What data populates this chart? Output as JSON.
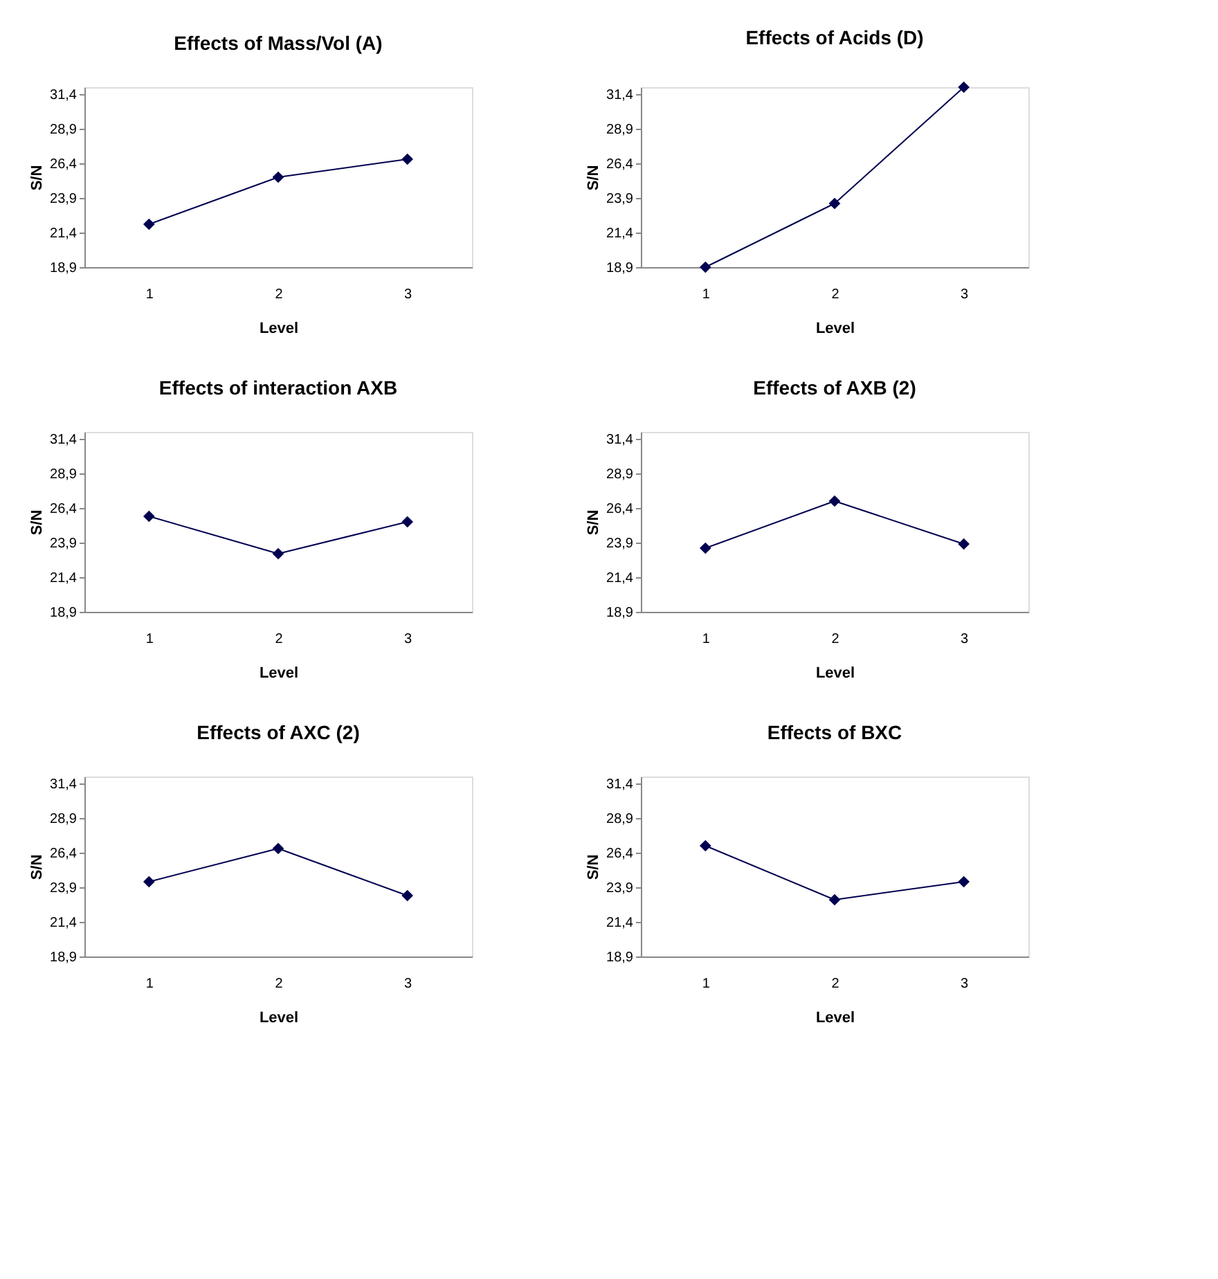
{
  "chart_data": [
    {
      "type": "line",
      "title": "Effects of Mass/Vol (A)",
      "xlabel": "Level",
      "ylabel": "S/N",
      "categories": [
        "1",
        "2",
        "3"
      ],
      "values": [
        22.0,
        25.4,
        26.7
      ],
      "color": "#000050",
      "marker": "diamond",
      "line_style": "solid",
      "grid": false,
      "ylim": [
        18.9,
        31.9
      ],
      "yticks": [
        {
          "value": 18.9,
          "label": "18,9"
        },
        {
          "value": 21.4,
          "label": "21,4"
        },
        {
          "value": 23.9,
          "label": "23,9"
        },
        {
          "value": 26.4,
          "label": "26,4"
        },
        {
          "value": 28.9,
          "label": "28,9"
        },
        {
          "value": 31.4,
          "label": "31,4"
        }
      ]
    },
    {
      "type": "line",
      "title": "Effects of Acids (D)",
      "xlabel": "Level",
      "ylabel": "S/N",
      "categories": [
        "1",
        "2",
        "3"
      ],
      "values": [
        18.9,
        23.5,
        31.9
      ],
      "color": "#000050",
      "marker": "diamond",
      "line_style": "solid",
      "grid": false,
      "ylim": [
        18.9,
        31.9
      ],
      "yticks": [
        {
          "value": 18.9,
          "label": "18,9"
        },
        {
          "value": 21.4,
          "label": "21,4"
        },
        {
          "value": 23.9,
          "label": "23,9"
        },
        {
          "value": 26.4,
          "label": "26,4"
        },
        {
          "value": 28.9,
          "label": "28,9"
        },
        {
          "value": 31.4,
          "label": "31,4"
        }
      ]
    },
    {
      "type": "line",
      "title": "Effects of interaction AXB",
      "xlabel": "Level",
      "ylabel": "S/N",
      "categories": [
        "1",
        "2",
        "3"
      ],
      "values": [
        25.8,
        23.1,
        25.4
      ],
      "color": "#000050",
      "marker": "diamond",
      "line_style": "solid",
      "grid": false,
      "ylim": [
        18.9,
        31.9
      ],
      "yticks": [
        {
          "value": 18.9,
          "label": "18,9"
        },
        {
          "value": 21.4,
          "label": "21,4"
        },
        {
          "value": 23.9,
          "label": "23,9"
        },
        {
          "value": 26.4,
          "label": "26,4"
        },
        {
          "value": 28.9,
          "label": "28,9"
        },
        {
          "value": 31.4,
          "label": "31,4"
        }
      ]
    },
    {
      "type": "line",
      "title": "Effects of AXB (2)",
      "xlabel": "Level",
      "ylabel": "S/N",
      "categories": [
        "1",
        "2",
        "3"
      ],
      "values": [
        23.5,
        26.9,
        23.8
      ],
      "color": "#000050",
      "marker": "diamond",
      "line_style": "solid",
      "grid": false,
      "ylim": [
        18.9,
        31.9
      ],
      "yticks": [
        {
          "value": 18.9,
          "label": "18,9"
        },
        {
          "value": 21.4,
          "label": "21,4"
        },
        {
          "value": 23.9,
          "label": "23,9"
        },
        {
          "value": 26.4,
          "label": "26,4"
        },
        {
          "value": 28.9,
          "label": "28,9"
        },
        {
          "value": 31.4,
          "label": "31,4"
        }
      ]
    },
    {
      "type": "line",
      "title": "Effects of AXC (2)",
      "xlabel": "Level",
      "ylabel": "S/N",
      "categories": [
        "1",
        "2",
        "3"
      ],
      "values": [
        24.3,
        26.7,
        23.3
      ],
      "color": "#000050",
      "marker": "diamond",
      "line_style": "solid",
      "grid": false,
      "ylim": [
        18.9,
        31.9
      ],
      "yticks": [
        {
          "value": 18.9,
          "label": "18,9"
        },
        {
          "value": 21.4,
          "label": "21,4"
        },
        {
          "value": 23.9,
          "label": "23,9"
        },
        {
          "value": 26.4,
          "label": "26,4"
        },
        {
          "value": 28.9,
          "label": "28,9"
        },
        {
          "value": 31.4,
          "label": "31,4"
        }
      ]
    },
    {
      "type": "line",
      "title": "Effects of BXC",
      "xlabel": "Level",
      "ylabel": "S/N",
      "categories": [
        "1",
        "2",
        "3"
      ],
      "values": [
        26.9,
        23.0,
        24.3
      ],
      "color": "#000050",
      "marker": "diamond",
      "line_style": "solid",
      "grid": false,
      "ylim": [
        18.9,
        31.9
      ],
      "yticks": [
        {
          "value": 18.9,
          "label": "18,9"
        },
        {
          "value": 21.4,
          "label": "21,4"
        },
        {
          "value": 23.9,
          "label": "23,9"
        },
        {
          "value": 26.4,
          "label": "26,4"
        },
        {
          "value": 28.9,
          "label": "28,9"
        },
        {
          "value": 31.4,
          "label": "31,4"
        }
      ]
    }
  ]
}
